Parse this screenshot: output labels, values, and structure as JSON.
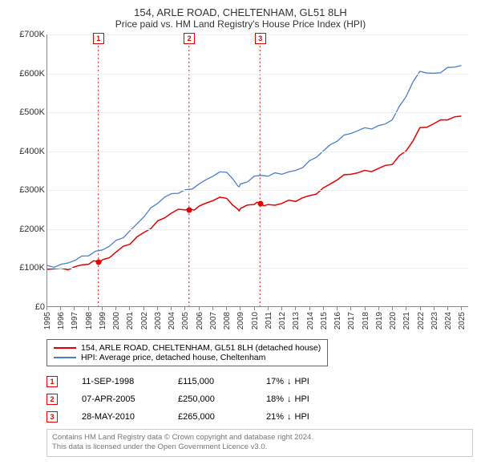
{
  "title": "154, ARLE ROAD, CHELTENHAM, GL51 8LH",
  "subtitle": "Price paid vs. HM Land Registry's House Price Index (HPI)",
  "chart": {
    "type": "line",
    "background_color": "#ffffff",
    "grid_color": "#eeeeee",
    "axis_color": "#888888",
    "xlim": [
      1995,
      2025.5
    ],
    "ylim": [
      0,
      700000
    ],
    "ytick_step": 100000,
    "yticks": [
      "£0",
      "£100K",
      "£200K",
      "£300K",
      "£400K",
      "£500K",
      "£600K",
      "£700K"
    ],
    "xticks": [
      1995,
      1996,
      1997,
      1998,
      1999,
      2000,
      2001,
      2002,
      2003,
      2004,
      2005,
      2006,
      2007,
      2008,
      2009,
      2010,
      2011,
      2012,
      2013,
      2014,
      2015,
      2016,
      2017,
      2018,
      2019,
      2020,
      2021,
      2022,
      2023,
      2024,
      2025
    ],
    "series": [
      {
        "name": "154, ARLE ROAD, CHELTENHAM, GL51 8LH (detached house)",
        "color": "#e60000",
        "line_width": 1.5,
        "data_x": [
          1995,
          1996,
          1997,
          1998,
          1998.7,
          1999,
          2000,
          2001,
          2002,
          2003,
          2004,
          2005,
          2005.3,
          2006,
          2007,
          2008,
          2008.8,
          2009,
          2010,
          2010.4,
          2011,
          2012,
          2013,
          2014,
          2015,
          2016,
          2017,
          2018,
          2019,
          2020,
          2021,
          2022,
          2023,
          2024,
          2025
        ],
        "data_y": [
          95000,
          98000,
          102000,
          108000,
          115000,
          120000,
          140000,
          160000,
          190000,
          220000,
          240000,
          248000,
          250000,
          258000,
          272000,
          278000,
          250000,
          252000,
          262000,
          265000,
          262000,
          265000,
          270000,
          285000,
          305000,
          325000,
          340000,
          350000,
          355000,
          365000,
          400000,
          460000,
          470000,
          480000,
          490000
        ]
      },
      {
        "name": "HPI: Average price, detached house, Cheltenham",
        "color": "#4a7ec8",
        "line_width": 1.3,
        "data_x": [
          1995,
          1996,
          1997,
          1998,
          1999,
          2000,
          2001,
          2002,
          2003,
          2004,
          2005,
          2006,
          2007,
          2008,
          2008.8,
          2009,
          2010,
          2011,
          2012,
          2013,
          2014,
          2015,
          2016,
          2017,
          2018,
          2019,
          2020,
          2021,
          2022,
          2023,
          2024,
          2025
        ],
        "data_y": [
          105000,
          108000,
          118000,
          130000,
          145000,
          170000,
          195000,
          230000,
          265000,
          290000,
          300000,
          315000,
          335000,
          345000,
          310000,
          315000,
          335000,
          335000,
          340000,
          350000,
          375000,
          400000,
          425000,
          445000,
          460000,
          465000,
          480000,
          540000,
          605000,
          600000,
          615000,
          620000
        ]
      }
    ],
    "event_markers": [
      {
        "num": "1",
        "x": 1998.7,
        "y": 115000,
        "color": "#e60000"
      },
      {
        "num": "2",
        "x": 2005.27,
        "y": 250000,
        "color": "#e60000"
      },
      {
        "num": "3",
        "x": 2010.41,
        "y": 265000,
        "color": "#e60000"
      }
    ]
  },
  "legend": [
    {
      "color": "#e60000",
      "label": "154, ARLE ROAD, CHELTENHAM, GL51 8LH (detached house)"
    },
    {
      "color": "#4a7ec8",
      "label": "HPI: Average price, detached house, Cheltenham"
    }
  ],
  "events": [
    {
      "num": "1",
      "color": "#e60000",
      "date": "11-SEP-1998",
      "price": "£115,000",
      "diff_pct": "17%",
      "diff_dir": "↓",
      "diff_label": "HPI"
    },
    {
      "num": "2",
      "color": "#e60000",
      "date": "07-APR-2005",
      "price": "£250,000",
      "diff_pct": "18%",
      "diff_dir": "↓",
      "diff_label": "HPI"
    },
    {
      "num": "3",
      "color": "#e60000",
      "date": "28-MAY-2010",
      "price": "£265,000",
      "diff_pct": "21%",
      "diff_dir": "↓",
      "diff_label": "HPI"
    }
  ],
  "footer": {
    "line1": "Contains HM Land Registry data © Crown copyright and database right 2024.",
    "line2": "This data is licensed under the Open Government Licence v3.0."
  }
}
